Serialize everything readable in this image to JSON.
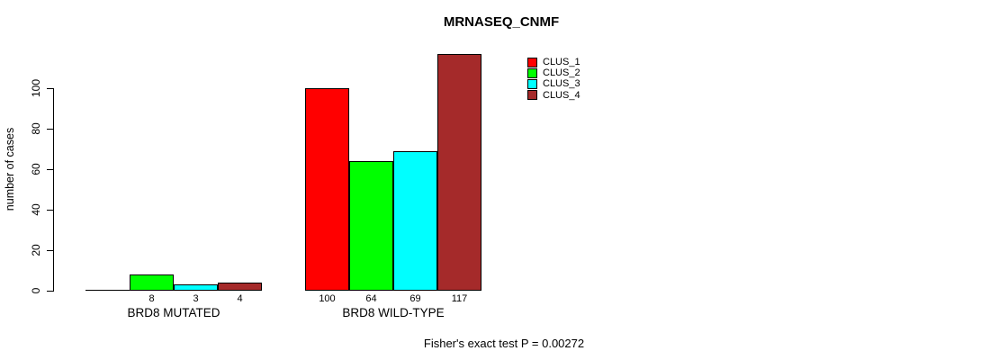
{
  "chart_data": {
    "type": "bar",
    "title": "MRNASEQ_CNMF",
    "ylabel": "number of cases",
    "xlabel": "",
    "categories": [
      "BRD8 MUTATED",
      "BRD8 WILD-TYPE"
    ],
    "series": [
      {
        "name": "CLUS_1",
        "color": "#FF0000",
        "values": [
          0,
          100
        ],
        "value_labels": [
          "",
          "100"
        ]
      },
      {
        "name": "CLUS_2",
        "color": "#00FF00",
        "values": [
          8,
          64
        ],
        "value_labels": [
          "8",
          "64"
        ]
      },
      {
        "name": "CLUS_3",
        "color": "#00FFFF",
        "values": [
          3,
          69
        ],
        "value_labels": [
          "3",
          "69"
        ]
      },
      {
        "name": "CLUS_4",
        "color": "#A52A2A",
        "values": [
          4,
          117
        ],
        "value_labels": [
          "4",
          "117"
        ]
      }
    ],
    "ylim": [
      0,
      100
    ],
    "yticks": [
      0,
      20,
      40,
      60,
      80,
      100
    ],
    "grid": false,
    "legend_position": "top-right",
    "annotation": "Fisher's exact test P = 0.00272"
  }
}
